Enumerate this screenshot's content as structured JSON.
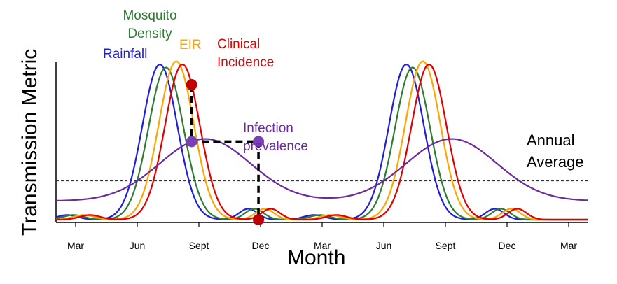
{
  "chart_data": {
    "type": "line",
    "xlabel": "Month",
    "ylabel": "Transmission Metric",
    "x_ticks": [
      "Mar",
      "Jun",
      "Sept",
      "Dec",
      "Mar",
      "Jun",
      "Sept",
      "Dec",
      "Mar"
    ],
    "grid": false,
    "reference_line": {
      "label": "Annual Average",
      "style": "dashed",
      "y": 0.25
    },
    "series": [
      {
        "name": "Rainfall",
        "color": "#1f1fd6",
        "peak_months": [
          7.1,
          19.1
        ],
        "peak_value": 1.0,
        "width": 0.85
      },
      {
        "name": "Mosquito Density",
        "color": "#2e7d32",
        "peak_months": [
          7.4,
          19.4
        ],
        "peak_value": 0.98,
        "width": 0.85
      },
      {
        "name": "EIR",
        "color": "#ffa500",
        "peak_months": [
          7.9,
          19.9
        ],
        "peak_value": 1.02,
        "width": 0.85
      },
      {
        "name": "Clinical Incidence",
        "color": "#e00000",
        "peak_months": [
          8.2,
          20.2
        ],
        "peak_value": 1.0,
        "width": 0.85
      },
      {
        "name": "Infection prevalence",
        "color": "#6a2aa0",
        "peak_months": [
          9.3,
          21.3
        ],
        "peak_value": 0.4,
        "width": 2.2
      }
    ],
    "annotation_label_lines": {
      "mosquito": [
        "Mosquito",
        "Density"
      ],
      "clinical": [
        "Clinical",
        "Incidence"
      ],
      "infection": [
        "Infection",
        "prevalence"
      ],
      "annual": [
        "Annual",
        "Average"
      ]
    }
  }
}
